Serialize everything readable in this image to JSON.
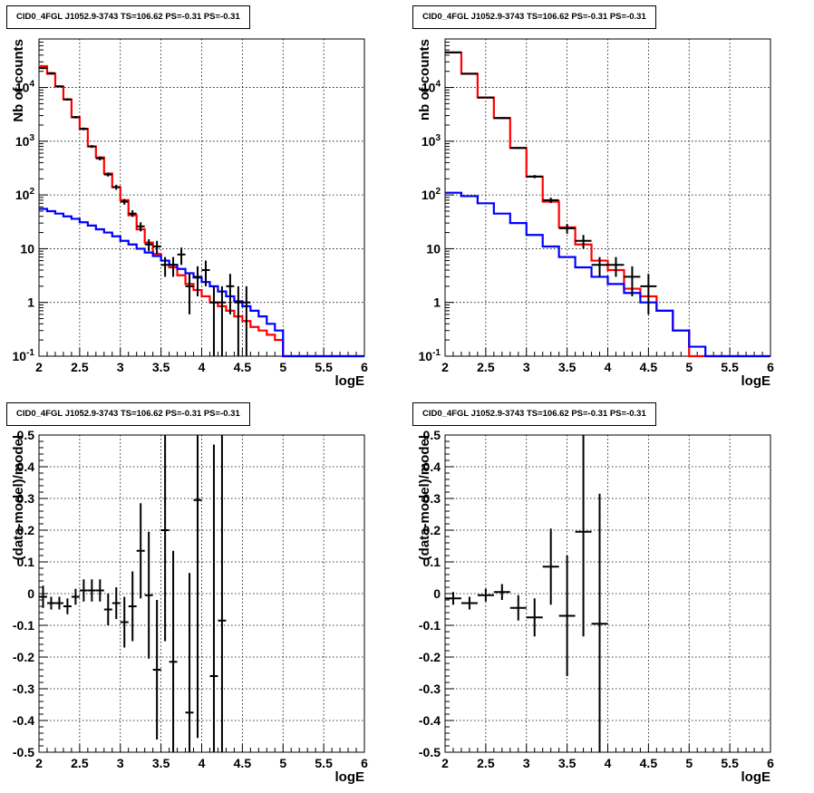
{
  "chart_data": [
    {
      "type": "histogram",
      "title": "CID0_4FGL J1052.9-3743 TS=106.62 PS=-0.31 PS=-0.31",
      "xlabel": "logE",
      "ylabel": "Nb of counts",
      "xlim": [
        2,
        6
      ],
      "ylim": [
        0.1,
        80000
      ],
      "yscale": "log",
      "grid": true,
      "xticks": [
        "2",
        "2.5",
        "3",
        "3.5",
        "4",
        "4.5",
        "5",
        "5.5",
        "6"
      ],
      "yticks": [
        "10^-1",
        "1",
        "10",
        "10^2",
        "10^3",
        "10^4"
      ],
      "bin_edges": [
        2.0,
        2.1,
        2.2,
        2.3,
        2.4,
        2.5,
        2.6,
        2.7,
        2.8,
        2.9,
        3.0,
        3.1,
        3.2,
        3.3,
        3.4,
        3.5,
        3.6,
        3.7,
        3.8,
        3.9,
        4.0,
        4.1,
        4.2,
        4.3,
        4.4,
        4.5,
        4.6,
        4.7,
        4.8,
        4.9,
        5.0,
        5.1,
        5.2,
        5.3,
        5.4,
        5.5,
        5.6,
        5.7,
        5.8,
        5.9,
        6.0
      ],
      "series": [
        {
          "color": "#ff0000",
          "style": "step",
          "values": [
            25000,
            18000,
            10500,
            6000,
            2800,
            1700,
            800,
            500,
            250,
            140,
            80,
            42,
            23,
            13,
            8,
            6,
            4.5,
            3.2,
            2.2,
            1.7,
            1.3,
            1.0,
            0.85,
            0.7,
            0.55,
            0.45,
            0.35,
            0.3,
            0.25,
            0.2,
            0.1,
            0.1,
            0.1,
            0.1,
            0.1,
            0.1,
            0.1,
            0.1,
            0.1,
            0.1
          ]
        },
        {
          "color": "#0000ff",
          "style": "step",
          "values": [
            55,
            50,
            45,
            40,
            36,
            31,
            27,
            23,
            20,
            17,
            14,
            12,
            10,
            8.5,
            7.3,
            6,
            5,
            4.2,
            3.5,
            2.9,
            2.4,
            2,
            1.6,
            1.3,
            1.05,
            0.85,
            0.7,
            0.55,
            0.4,
            0.3,
            0.1,
            0.1,
            0.1,
            0.1,
            0.1,
            0.1,
            0.1,
            0.1,
            0.1,
            0.1
          ]
        }
      ],
      "points": [
        {
          "x": 2.05,
          "y": 23000,
          "lo": 22000,
          "hi": 24000
        },
        {
          "x": 2.15,
          "y": 18500,
          "lo": 17700,
          "hi": 19300
        },
        {
          "x": 2.25,
          "y": 10500,
          "lo": 10100,
          "hi": 10900
        },
        {
          "x": 2.35,
          "y": 6000,
          "lo": 5700,
          "hi": 6300
        },
        {
          "x": 2.45,
          "y": 2800,
          "lo": 2650,
          "hi": 2950
        },
        {
          "x": 2.55,
          "y": 1700,
          "lo": 1600,
          "hi": 1800
        },
        {
          "x": 2.65,
          "y": 800,
          "lo": 750,
          "hi": 850
        },
        {
          "x": 2.75,
          "y": 480,
          "lo": 440,
          "hi": 520
        },
        {
          "x": 2.85,
          "y": 240,
          "lo": 220,
          "hi": 260
        },
        {
          "x": 2.95,
          "y": 140,
          "lo": 125,
          "hi": 155
        },
        {
          "x": 3.05,
          "y": 75,
          "lo": 66,
          "hi": 84
        },
        {
          "x": 3.15,
          "y": 45,
          "lo": 39,
          "hi": 52
        },
        {
          "x": 3.25,
          "y": 26,
          "lo": 21,
          "hi": 31
        },
        {
          "x": 3.35,
          "y": 12,
          "lo": 9,
          "hi": 15
        },
        {
          "x": 3.45,
          "y": 11,
          "lo": 8,
          "hi": 14
        },
        {
          "x": 3.55,
          "y": 5,
          "lo": 3,
          "hi": 7
        },
        {
          "x": 3.65,
          "y": 5,
          "lo": 3,
          "hi": 7
        },
        {
          "x": 3.75,
          "y": 7.8,
          "lo": 5,
          "hi": 10.5
        },
        {
          "x": 3.85,
          "y": 2,
          "lo": 0.6,
          "hi": 3.4
        },
        {
          "x": 3.95,
          "y": 3,
          "lo": 1.3,
          "hi": 4.7
        },
        {
          "x": 4.05,
          "y": 4,
          "lo": 2,
          "hi": 6
        },
        {
          "x": 4.15,
          "y": 1,
          "lo": 0.1,
          "hi": 2
        },
        {
          "x": 4.25,
          "y": 1,
          "lo": 0.1,
          "hi": 2
        },
        {
          "x": 4.35,
          "y": 2,
          "lo": 0.6,
          "hi": 3.4
        },
        {
          "x": 4.45,
          "y": 1,
          "lo": 0.1,
          "hi": 2
        },
        {
          "x": 4.55,
          "y": 1,
          "lo": 0.1,
          "hi": 2
        }
      ]
    },
    {
      "type": "histogram",
      "title": "CID0_4FGL J1052.9-3743 TS=106.62 PS=-0.31 PS=-0.31",
      "xlabel": "logE",
      "ylabel": "nb of counts",
      "xlim": [
        2,
        6
      ],
      "ylim": [
        0.1,
        80000
      ],
      "yscale": "log",
      "grid": true,
      "xticks": [
        "2",
        "2.5",
        "3",
        "3.5",
        "4",
        "4.5",
        "5",
        "5.5",
        "6"
      ],
      "yticks": [
        "10^-1",
        "1",
        "10",
        "10^2",
        "10^3",
        "10^4"
      ],
      "bin_edges": [
        2.0,
        2.2,
        2.4,
        2.6,
        2.8,
        3.0,
        3.2,
        3.4,
        3.6,
        3.8,
        4.0,
        4.2,
        4.4,
        4.6,
        4.8,
        5.0,
        5.2,
        5.4,
        5.6,
        5.8,
        6.0
      ],
      "series": [
        {
          "color": "#ff0000",
          "style": "step",
          "values": [
            45000,
            18000,
            6500,
            2700,
            750,
            220,
            75,
            25,
            12,
            6,
            4,
            1.8,
            1.3,
            0.7,
            0.3,
            0.1,
            0.1,
            0.1,
            0.1,
            0.1
          ]
        },
        {
          "color": "#0000ff",
          "style": "step",
          "values": [
            110,
            95,
            70,
            45,
            30,
            18,
            11,
            7,
            4.5,
            3,
            2.2,
            1.5,
            1.0,
            0.7,
            0.3,
            0.15,
            0.1,
            0.1,
            0.1,
            0.1
          ]
        }
      ],
      "points": [
        {
          "x": 2.1,
          "y": 45000,
          "lo": 44000,
          "hi": 46000
        },
        {
          "x": 2.3,
          "y": 18000,
          "lo": 17500,
          "hi": 18500
        },
        {
          "x": 2.5,
          "y": 6500,
          "lo": 6300,
          "hi": 6700
        },
        {
          "x": 2.7,
          "y": 2700,
          "lo": 2600,
          "hi": 2800
        },
        {
          "x": 2.9,
          "y": 750,
          "lo": 720,
          "hi": 780
        },
        {
          "x": 3.1,
          "y": 220,
          "lo": 205,
          "hi": 235
        },
        {
          "x": 3.3,
          "y": 80,
          "lo": 71,
          "hi": 89
        },
        {
          "x": 3.5,
          "y": 24,
          "lo": 19,
          "hi": 29
        },
        {
          "x": 3.7,
          "y": 14,
          "lo": 10,
          "hi": 18
        },
        {
          "x": 3.9,
          "y": 5,
          "lo": 3,
          "hi": 7
        },
        {
          "x": 4.1,
          "y": 5,
          "lo": 3,
          "hi": 7
        },
        {
          "x": 4.3,
          "y": 3,
          "lo": 1.3,
          "hi": 4.7
        },
        {
          "x": 4.5,
          "y": 2,
          "lo": 0.6,
          "hi": 3.4
        }
      ]
    },
    {
      "type": "scatter",
      "title": "CID0_4FGL J1052.9-3743 TS=106.62 PS=-0.31 PS=-0.31",
      "xlabel": "logE",
      "ylabel": "(data-model)/model",
      "xlim": [
        2,
        6
      ],
      "ylim": [
        -0.5,
        0.5
      ],
      "grid": true,
      "xticks": [
        "2",
        "2.5",
        "3",
        "3.5",
        "4",
        "4.5",
        "5",
        "5.5",
        "6"
      ],
      "yticks": [
        "-0.5",
        "-0.4",
        "-0.3",
        "-0.2",
        "-0.1",
        "0",
        "0.1",
        "0.2",
        "0.3",
        "0.4",
        "0.5"
      ],
      "xhalfwidth": 0.05,
      "points": [
        {
          "x": 2.05,
          "y": -0.01,
          "err": 0.035
        },
        {
          "x": 2.15,
          "y": -0.03,
          "err": 0.02
        },
        {
          "x": 2.25,
          "y": -0.03,
          "err": 0.02
        },
        {
          "x": 2.35,
          "y": -0.04,
          "err": 0.025
        },
        {
          "x": 2.45,
          "y": -0.01,
          "err": 0.025
        },
        {
          "x": 2.55,
          "y": 0.01,
          "err": 0.035
        },
        {
          "x": 2.65,
          "y": 0.01,
          "err": 0.035
        },
        {
          "x": 2.75,
          "y": 0.01,
          "err": 0.035
        },
        {
          "x": 2.85,
          "y": -0.05,
          "err": 0.05
        },
        {
          "x": 2.95,
          "y": -0.03,
          "err": 0.05
        },
        {
          "x": 3.05,
          "y": -0.09,
          "err": 0.08
        },
        {
          "x": 3.15,
          "y": -0.04,
          "err": 0.11
        },
        {
          "x": 3.25,
          "y": 0.135,
          "err": 0.15
        },
        {
          "x": 3.35,
          "y": -0.005,
          "err": 0.2
        },
        {
          "x": 3.45,
          "y": -0.24,
          "err": 0.22
        },
        {
          "x": 3.55,
          "y": 0.2,
          "err": 0.35
        },
        {
          "x": 3.65,
          "y": -0.215,
          "err": 0.35
        },
        {
          "x": 3.85,
          "y": -0.375,
          "err": 0.44
        },
        {
          "x": 3.95,
          "y": 0.295,
          "err": 0.75
        },
        {
          "x": 4.15,
          "y": -0.26,
          "err": 0.73
        },
        {
          "x": 4.25,
          "y": -0.085,
          "err": 0.85
        }
      ]
    },
    {
      "type": "scatter",
      "title": "CID0_4FGL J1052.9-3743 TS=106.62 PS=-0.31 PS=-0.31",
      "xlabel": "logE",
      "ylabel": "(data-model)/model",
      "xlim": [
        2,
        6
      ],
      "ylim": [
        -0.5,
        0.5
      ],
      "grid": true,
      "xticks": [
        "2",
        "2.5",
        "3",
        "3.5",
        "4",
        "4.5",
        "5",
        "5.5",
        "6"
      ],
      "yticks": [
        "-0.5",
        "-0.4",
        "-0.3",
        "-0.2",
        "-0.1",
        "0",
        "0.1",
        "0.2",
        "0.3",
        "0.4",
        "0.5"
      ],
      "xhalfwidth": 0.1,
      "points": [
        {
          "x": 2.1,
          "y": -0.015,
          "err": 0.02
        },
        {
          "x": 2.3,
          "y": -0.03,
          "err": 0.02
        },
        {
          "x": 2.5,
          "y": -0.005,
          "err": 0.02
        },
        {
          "x": 2.7,
          "y": 0.005,
          "err": 0.025
        },
        {
          "x": 2.9,
          "y": -0.045,
          "err": 0.04
        },
        {
          "x": 3.1,
          "y": -0.075,
          "err": 0.06
        },
        {
          "x": 3.3,
          "y": 0.085,
          "err": 0.12
        },
        {
          "x": 3.5,
          "y": -0.07,
          "err": 0.19
        },
        {
          "x": 3.7,
          "y": 0.195,
          "err": 0.33
        },
        {
          "x": 3.9,
          "y": -0.095,
          "err": 0.41
        }
      ]
    }
  ]
}
